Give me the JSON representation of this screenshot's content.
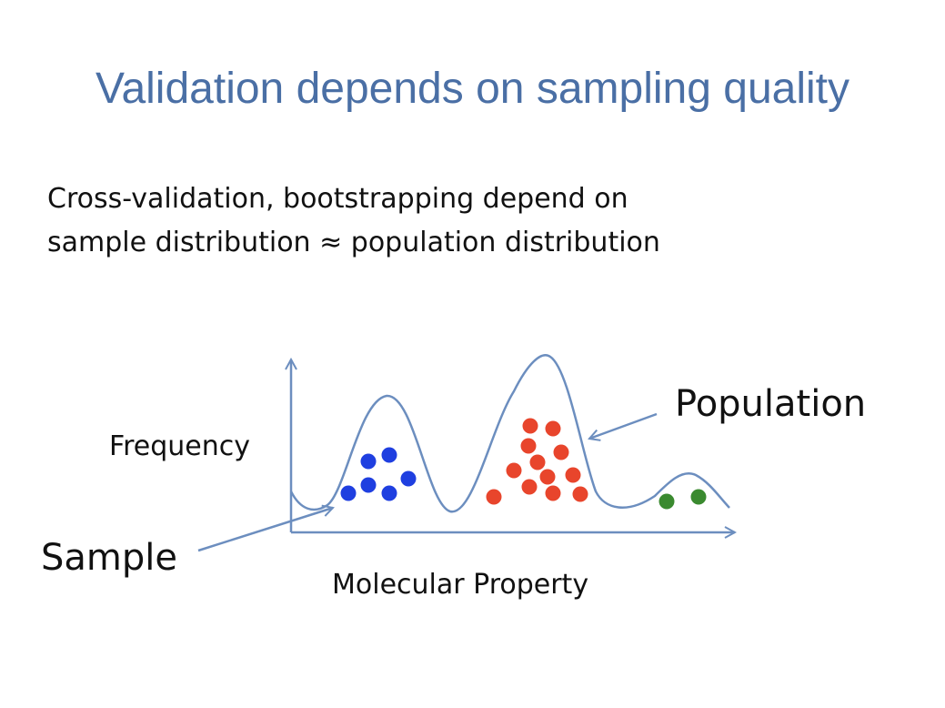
{
  "slide": {
    "title": "Validation depends on sampling quality",
    "body_lines": [
      "Cross-validation, bootstrapping depend on",
      "sample distribution ≈ population distribution"
    ]
  },
  "diagram": {
    "y_axis_label": "Frequency",
    "x_axis_label": "Molecular Property",
    "population_label": "Population",
    "sample_label": "Sample",
    "colors": {
      "curve": "#6c8ebf",
      "axis": "#6c8ebf",
      "arrow": "#6c8ebf",
      "cluster_1": "#1f3fe0",
      "cluster_2": "#e8452c",
      "cluster_3": "#3a8a2f"
    }
  }
}
